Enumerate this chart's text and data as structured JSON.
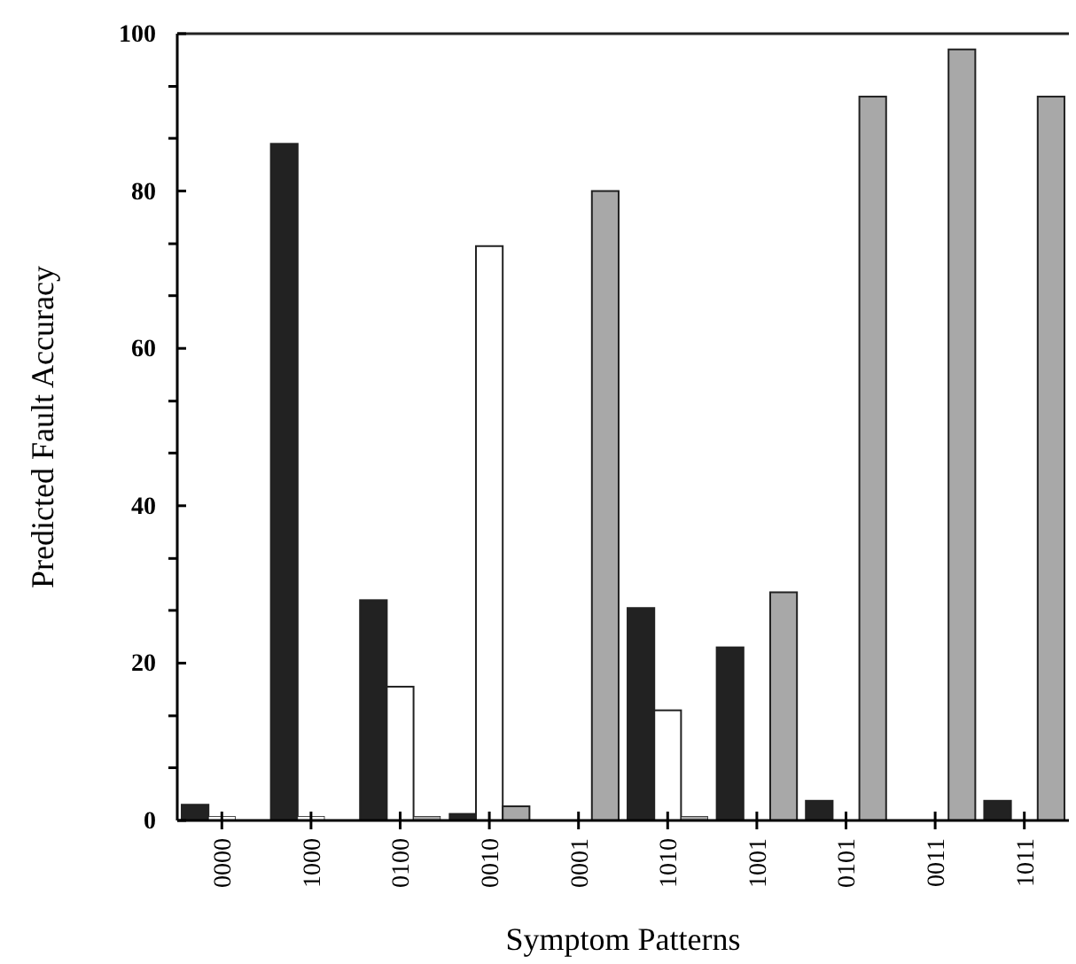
{
  "chart_data": {
    "type": "bar",
    "xlabel": "Symptom Patterns",
    "ylabel": "Predicted Fault Accuracy",
    "categories": [
      "0000",
      "1000",
      "0100",
      "0010",
      "0001",
      "1010",
      "1001",
      "0101",
      "0011",
      "1011"
    ],
    "series": [
      {
        "color": "#222222",
        "values": [
          2,
          86,
          28,
          0.9,
          null,
          27,
          22,
          2.5,
          null,
          2.5
        ]
      },
      {
        "color": "#ffffff",
        "values": [
          0.5,
          0.5,
          17,
          73,
          null,
          14,
          null,
          null,
          null,
          null
        ]
      },
      {
        "color": "#a8a8a8",
        "values": [
          null,
          null,
          0.5,
          1.8,
          80,
          0.5,
          29,
          92,
          98,
          92
        ]
      }
    ],
    "ylim": [
      0,
      100
    ],
    "yticks": [
      0,
      {
        "value": 6.7,
        "label": null
      },
      {
        "value": 13.3,
        "label": null
      },
      20,
      {
        "value": 26.7,
        "label": null
      },
      {
        "value": 33.3,
        "label": null
      },
      40,
      {
        "value": 46.7,
        "label": null
      },
      {
        "value": 53.3,
        "label": null
      },
      60,
      {
        "value": 66.7,
        "label": null
      },
      {
        "value": 73.3,
        "label": null
      },
      80,
      {
        "value": 86.7,
        "label": null
      },
      {
        "value": 93.3,
        "label": null
      },
      100
    ],
    "grid": false
  }
}
